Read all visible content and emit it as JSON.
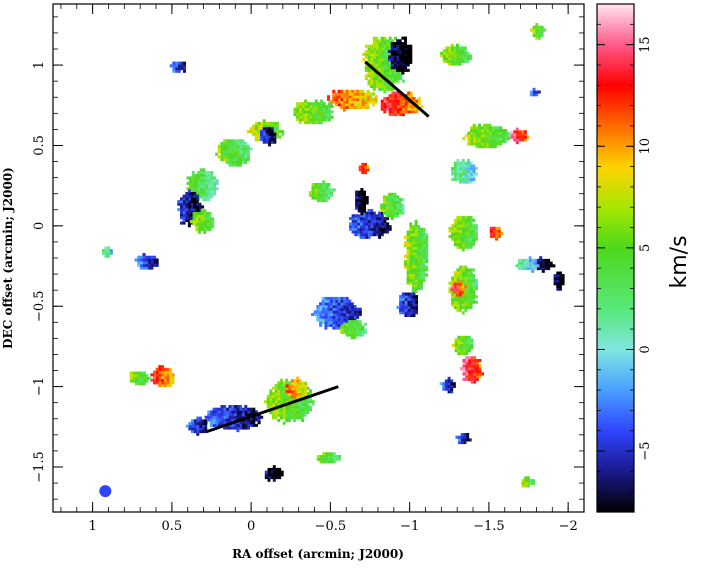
{
  "chart_data": {
    "type": "heatmap",
    "title": "",
    "xlabel": "RA offset (arcmin; J2000)",
    "ylabel": "DEC offset (arcmin; J2000)",
    "xlim": [
      1.25,
      -2.1
    ],
    "ylim": [
      -1.78,
      1.38
    ],
    "x_ticks": [
      1,
      0.5,
      0,
      -0.5,
      -1,
      -1.5,
      -2
    ],
    "x_tick_labels": [
      "1",
      "0.5",
      "0",
      "−0.5",
      "−1",
      "−1.5",
      "−2"
    ],
    "y_ticks": [
      1,
      0.5,
      0,
      -0.5,
      -1,
      -1.5
    ],
    "y_tick_labels": [
      "1",
      "0.5",
      "0",
      "−0.5",
      "−1",
      "−1.5"
    ],
    "colorbar": {
      "label": "km/s",
      "range": [
        -8,
        17
      ],
      "ticks": [
        15,
        10,
        5,
        0,
        -5
      ],
      "tick_labels": [
        "15",
        "10",
        "5",
        "0",
        "−5"
      ],
      "stops": [
        {
          "v": -8,
          "color": "#000000"
        },
        {
          "v": -6,
          "color": "#1a1a8c"
        },
        {
          "v": -4,
          "color": "#2f45ff"
        },
        {
          "v": -2,
          "color": "#4aa0ff"
        },
        {
          "v": 0,
          "color": "#7fe6e0"
        },
        {
          "v": 2,
          "color": "#59e87a"
        },
        {
          "v": 5,
          "color": "#4dd81a"
        },
        {
          "v": 7,
          "color": "#a8e600"
        },
        {
          "v": 9,
          "color": "#ffd200"
        },
        {
          "v": 11,
          "color": "#ff6a00"
        },
        {
          "v": 13,
          "color": "#ff0000"
        },
        {
          "v": 15,
          "color": "#ff5a8c"
        },
        {
          "v": 17,
          "color": "#ffe6f0"
        }
      ]
    },
    "features": [
      {
        "name": "clump-north-ridge",
        "x": -0.85,
        "y": 1.0,
        "sx": 0.12,
        "sy": 0.16,
        "v": 5
      },
      {
        "name": "clump-north-black",
        "x": -0.95,
        "y": 1.05,
        "sx": 0.07,
        "sy": 0.1,
        "v": -8
      },
      {
        "name": "clump-north-red",
        "x": -0.95,
        "y": 0.75,
        "sx": 0.12,
        "sy": 0.07,
        "v": 12
      },
      {
        "name": "clump-ne-green",
        "x": -1.3,
        "y": 1.05,
        "sx": 0.09,
        "sy": 0.06,
        "v": 5
      },
      {
        "name": "arc-north-1",
        "x": -0.65,
        "y": 0.78,
        "sx": 0.14,
        "sy": 0.06,
        "v": 10
      },
      {
        "name": "arc-north-2",
        "x": -0.4,
        "y": 0.7,
        "sx": 0.12,
        "sy": 0.07,
        "v": 5
      },
      {
        "name": "arc-north-3",
        "x": -0.1,
        "y": 0.58,
        "sx": 0.1,
        "sy": 0.06,
        "v": 6
      },
      {
        "name": "arc-north-blue",
        "x": -0.12,
        "y": 0.55,
        "sx": 0.05,
        "sy": 0.05,
        "v": -6
      },
      {
        "name": "arc-west-1",
        "x": 0.1,
        "y": 0.45,
        "sx": 0.1,
        "sy": 0.08,
        "v": 4
      },
      {
        "name": "arc-west-2",
        "x": 0.3,
        "y": 0.25,
        "sx": 0.09,
        "sy": 0.09,
        "v": 3
      },
      {
        "name": "arc-west-blue",
        "x": 0.38,
        "y": 0.1,
        "sx": 0.07,
        "sy": 0.1,
        "v": -6
      },
      {
        "name": "arc-west-green",
        "x": 0.3,
        "y": 0.02,
        "sx": 0.07,
        "sy": 0.06,
        "v": 5
      },
      {
        "name": "center-blue",
        "x": -0.75,
        "y": 0.0,
        "sx": 0.12,
        "sy": 0.08,
        "v": -5
      },
      {
        "name": "center-black",
        "x": -0.7,
        "y": 0.15,
        "sx": 0.04,
        "sy": 0.07,
        "v": -8
      },
      {
        "name": "center-green-1",
        "x": -0.9,
        "y": 0.12,
        "sx": 0.07,
        "sy": 0.07,
        "v": 4
      },
      {
        "name": "center-green-2",
        "x": -1.05,
        "y": -0.2,
        "sx": 0.07,
        "sy": 0.2,
        "v": 5
      },
      {
        "name": "center-blue-2",
        "x": -1.0,
        "y": -0.5,
        "sx": 0.06,
        "sy": 0.07,
        "v": -5
      },
      {
        "name": "east-green",
        "x": -1.5,
        "y": 0.55,
        "sx": 0.13,
        "sy": 0.07,
        "v": 5
      },
      {
        "name": "east-red-1",
        "x": -1.7,
        "y": 0.55,
        "sx": 0.05,
        "sy": 0.04,
        "v": 13
      },
      {
        "name": "east-cyan",
        "x": -1.35,
        "y": 0.33,
        "sx": 0.08,
        "sy": 0.07,
        "v": 1
      },
      {
        "name": "east-green-2",
        "x": -1.35,
        "y": -0.05,
        "sx": 0.08,
        "sy": 0.1,
        "v": 5
      },
      {
        "name": "east-red-2",
        "x": -1.55,
        "y": -0.05,
        "sx": 0.04,
        "sy": 0.04,
        "v": 12
      },
      {
        "name": "east-green-3",
        "x": -1.35,
        "y": -0.4,
        "sx": 0.08,
        "sy": 0.13,
        "v": 5
      },
      {
        "name": "east-red-3",
        "x": -1.32,
        "y": -0.4,
        "sx": 0.04,
        "sy": 0.05,
        "v": 12
      },
      {
        "name": "east-black",
        "x": -1.85,
        "y": -0.25,
        "sx": 0.06,
        "sy": 0.04,
        "v": -8
      },
      {
        "name": "east-cyan-2",
        "x": -1.75,
        "y": -0.25,
        "sx": 0.06,
        "sy": 0.04,
        "v": 0
      },
      {
        "name": "se-red",
        "x": -1.4,
        "y": -0.9,
        "sx": 0.06,
        "sy": 0.08,
        "v": 13
      },
      {
        "name": "se-green",
        "x": -1.35,
        "y": -0.75,
        "sx": 0.06,
        "sy": 0.06,
        "v": 5
      },
      {
        "name": "se-blue",
        "x": -1.25,
        "y": -1.0,
        "sx": 0.04,
        "sy": 0.04,
        "v": -5
      },
      {
        "name": "mid-blue",
        "x": -0.55,
        "y": -0.55,
        "sx": 0.14,
        "sy": 0.09,
        "v": -4
      },
      {
        "name": "mid-green",
        "x": -0.65,
        "y": -0.65,
        "sx": 0.08,
        "sy": 0.05,
        "v": 4
      },
      {
        "name": "south-blue",
        "x": 0.1,
        "y": -1.2,
        "sx": 0.16,
        "sy": 0.07,
        "v": -5
      },
      {
        "name": "south-green",
        "x": -0.25,
        "y": -1.1,
        "sx": 0.13,
        "sy": 0.12,
        "v": 5
      },
      {
        "name": "south-orange",
        "x": -0.3,
        "y": -1.02,
        "sx": 0.06,
        "sy": 0.06,
        "v": 9
      },
      {
        "name": "south-west-blue",
        "x": 0.33,
        "y": -1.25,
        "sx": 0.06,
        "sy": 0.05,
        "v": -5
      },
      {
        "name": "south-west-red",
        "x": 0.55,
        "y": -0.95,
        "sx": 0.07,
        "sy": 0.06,
        "v": 11
      },
      {
        "name": "south-west-green",
        "x": 0.7,
        "y": -0.95,
        "sx": 0.06,
        "sy": 0.04,
        "v": 5
      },
      {
        "name": "west-clump",
        "x": 0.65,
        "y": -0.23,
        "sx": 0.07,
        "sy": 0.04,
        "v": -4
      },
      {
        "name": "west-cyan",
        "x": 0.9,
        "y": -0.17,
        "sx": 0.03,
        "sy": 0.03,
        "v": 1
      },
      {
        "name": "nw-blue",
        "x": 0.45,
        "y": 0.98,
        "sx": 0.05,
        "sy": 0.03,
        "v": -5
      },
      {
        "name": "ne-green-small",
        "x": -1.82,
        "y": 1.2,
        "sx": 0.04,
        "sy": 0.04,
        "v": 5
      },
      {
        "name": "ne-blue-small",
        "x": -1.8,
        "y": 0.82,
        "sx": 0.03,
        "sy": 0.02,
        "v": -4
      },
      {
        "name": "south-mid-green",
        "x": -0.5,
        "y": -1.45,
        "sx": 0.07,
        "sy": 0.03,
        "v": 4
      },
      {
        "name": "south-east-blue",
        "x": -1.35,
        "y": -1.33,
        "sx": 0.04,
        "sy": 0.03,
        "v": -5
      },
      {
        "name": "south-black",
        "x": -0.15,
        "y": -1.55,
        "sx": 0.05,
        "sy": 0.04,
        "v": -8
      },
      {
        "name": "center-right-blue",
        "x": -0.45,
        "y": 0.2,
        "sx": 0.07,
        "sy": 0.06,
        "v": 4
      },
      {
        "name": "center-right-red",
        "x": -0.72,
        "y": 0.35,
        "sx": 0.03,
        "sy": 0.03,
        "v": 12
      },
      {
        "name": "far-east-green",
        "x": -1.75,
        "y": -1.6,
        "sx": 0.04,
        "sy": 0.03,
        "v": 5
      },
      {
        "name": "far-east-black",
        "x": -1.95,
        "y": -0.35,
        "sx": 0.03,
        "sy": 0.06,
        "v": -8
      }
    ],
    "lines": [
      {
        "name": "cut-north",
        "x1": -0.72,
        "y1": 1.02,
        "x2": -1.12,
        "y2": 0.68
      },
      {
        "name": "cut-south",
        "x1": -0.55,
        "y1": -1.0,
        "x2": 0.28,
        "y2": -1.28
      }
    ],
    "beam": {
      "x": 0.92,
      "y": -1.65,
      "color": "#2f45ff"
    }
  }
}
